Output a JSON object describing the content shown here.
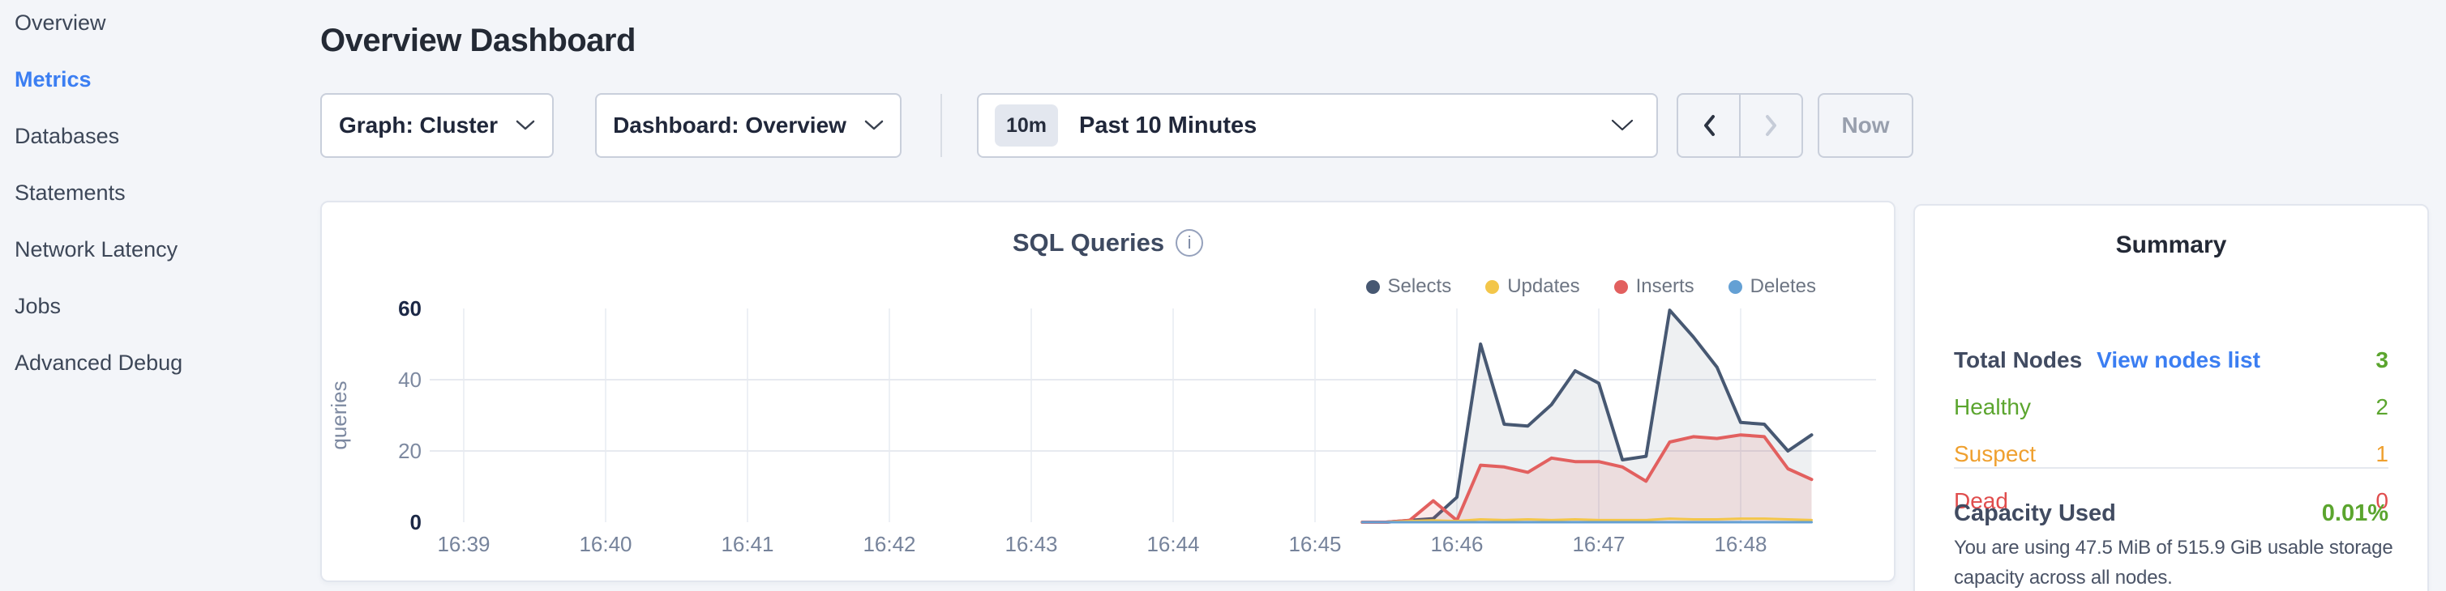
{
  "colors": {
    "accent_blue": "#3b7ef2",
    "healthy_green": "#5ba52e",
    "suspect_orange": "#efa02f",
    "dead_red": "#e04d4d",
    "page_background": "#f3f5f9"
  },
  "sidebar": {
    "items": [
      {
        "label": "Overview",
        "active": false
      },
      {
        "label": "Metrics",
        "active": true
      },
      {
        "label": "Databases",
        "active": false
      },
      {
        "label": "Statements",
        "active": false
      },
      {
        "label": "Network Latency",
        "active": false
      },
      {
        "label": "Jobs",
        "active": false
      },
      {
        "label": "Advanced Debug",
        "active": false
      }
    ]
  },
  "header": {
    "title": "Overview Dashboard"
  },
  "controls": {
    "graph_dropdown": "Graph: Cluster",
    "dashboard_dropdown": "Dashboard: Overview",
    "time_badge": "10m",
    "time_label": "Past 10 Minutes",
    "now_label": "Now"
  },
  "chart_data": {
    "type": "area",
    "title": "SQL Queries",
    "ylabel": "queries",
    "ylim": [
      0,
      60
    ],
    "y_ticks": [
      0,
      20,
      40,
      60
    ],
    "x_ticks": [
      "16:39",
      "16:40",
      "16:41",
      "16:42",
      "16:43",
      "16:44",
      "16:45",
      "16:46",
      "16:47",
      "16:48"
    ],
    "grid": true,
    "legend_position": "top-right",
    "t0_minutes": 6.33333,
    "dt_minutes": 0.1666667,
    "sample_times": [
      "16:45:20",
      "16:45:30",
      "16:45:40",
      "16:45:50",
      "16:46:00",
      "16:46:10",
      "16:46:20",
      "16:46:30",
      "16:46:40",
      "16:46:50",
      "16:47:00",
      "16:47:10",
      "16:47:20",
      "16:47:30",
      "16:47:40",
      "16:47:50",
      "16:48:00",
      "16:48:10",
      "16:48:20",
      "16:48:30"
    ],
    "series": [
      {
        "name": "Selects",
        "color": "#475872",
        "fill": "rgba(71,88,114,0.09)",
        "width": 4,
        "values": [
          0,
          0,
          0.5,
          1,
          7,
          50,
          27.5,
          27,
          33,
          42.5,
          39,
          17.5,
          18.5,
          59.5,
          52,
          43.5,
          28,
          27.5,
          20,
          24.5
        ]
      },
      {
        "name": "Updates",
        "color": "#f3c64a",
        "width": 3,
        "values": [
          0,
          0,
          0.3,
          0.5,
          0.3,
          0.8,
          0.6,
          0.8,
          0.6,
          0.8,
          0.6,
          0.6,
          0.6,
          1,
          0.8,
          0.8,
          1,
          1,
          0.8,
          0.6
        ]
      },
      {
        "name": "Inserts",
        "color": "#e2605f",
        "fill": "rgba(226,96,95,0.13)",
        "width": 4,
        "values": [
          0,
          0,
          0.5,
          6,
          0.5,
          16,
          15.5,
          14,
          18,
          17,
          17,
          15.5,
          11.5,
          22.5,
          24,
          23.5,
          24.5,
          24,
          15,
          12
        ]
      },
      {
        "name": "Deletes",
        "color": "#64a0d4",
        "width": 3,
        "values": [
          0,
          0,
          0,
          0,
          0,
          0,
          0,
          0,
          0,
          0,
          0,
          0,
          0,
          0,
          0,
          0,
          0,
          0,
          0,
          0
        ]
      }
    ]
  },
  "summary": {
    "title": "Summary",
    "rows": [
      {
        "label": "Total Nodes",
        "link": "View nodes list",
        "value": "3",
        "color": "#5ba52e"
      },
      {
        "label": "Healthy",
        "value": "2",
        "color": "#5ba52e"
      },
      {
        "label": "Suspect",
        "value": "1",
        "color": "#efa02f"
      },
      {
        "label": "Dead",
        "value": "0",
        "color": "#e04d4d"
      }
    ],
    "capacity_label": "Capacity Used",
    "capacity_value": "0.01%",
    "capacity_value_color": "#5ba52e",
    "capacity_description": "You are using 47.5 MiB of 515.9 GiB usable storage capacity across all nodes."
  }
}
